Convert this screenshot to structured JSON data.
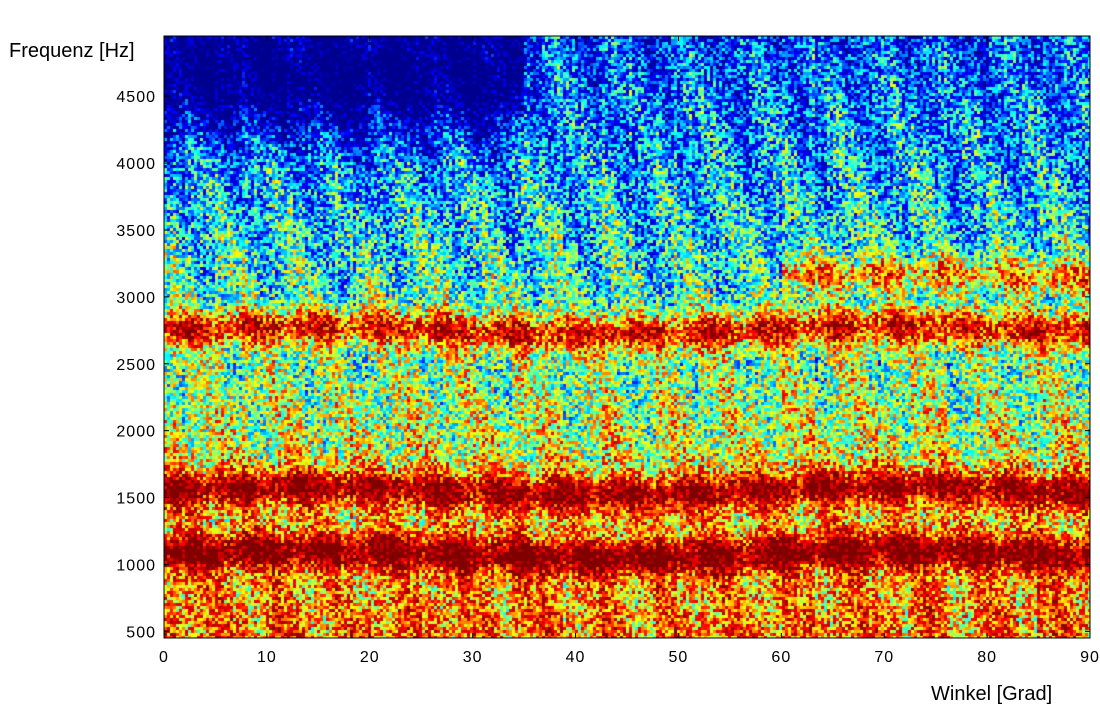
{
  "chart_data": {
    "type": "heatmap",
    "title": "",
    "xlabel": "Winkel [Grad]",
    "ylabel": "Frequenz [Hz]",
    "xlim": [
      0,
      90
    ],
    "ylim": [
      450,
      4950
    ],
    "x_ticks": [
      0,
      10,
      20,
      30,
      40,
      50,
      60,
      70,
      80,
      90
    ],
    "y_ticks": [
      500,
      1000,
      1500,
      2000,
      2500,
      3000,
      3500,
      4000,
      4500
    ],
    "colormap": "jet",
    "colormap_colors": [
      "#00008f",
      "#0000ff",
      "#00ffff",
      "#ffff00",
      "#ff0000",
      "#800000"
    ],
    "grid": false,
    "legend": "none",
    "intensity_bands": [
      {
        "frequency": 1075,
        "x_range": [
          0,
          90
        ],
        "level": "high"
      },
      {
        "frequency": 1550,
        "x_range": [
          0,
          90
        ],
        "level": "high"
      },
      {
        "frequency": 2750,
        "x_range": [
          0,
          90
        ],
        "level": "high"
      },
      {
        "frequency": 3150,
        "x_range": [
          60,
          90
        ],
        "level": "medium-high"
      },
      {
        "frequency": 4650,
        "x_range": [
          0,
          35
        ],
        "level": "low"
      }
    ]
  }
}
